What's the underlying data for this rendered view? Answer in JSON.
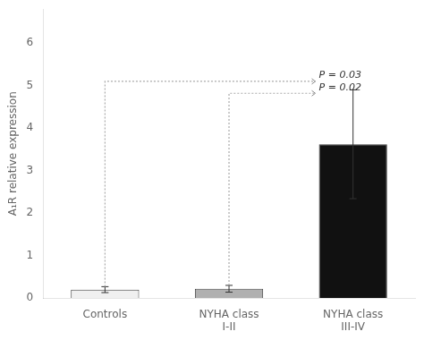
{
  "chart_data": {
    "type": "bar",
    "categories": [
      "Controls",
      "NYHA class\nI-II",
      "NYHA class\nIII-IV"
    ],
    "values": [
      0.2,
      0.22,
      3.62
    ],
    "errors": [
      0.07,
      0.08,
      1.28
    ],
    "colors": [
      "#f0f0f0",
      "#b0b0b0",
      "#111111"
    ],
    "ylabel": "A₁R relative expression",
    "ylim": [
      0,
      6.8
    ],
    "yticks": [
      0,
      1,
      2,
      3,
      4,
      5,
      6
    ],
    "grid": false,
    "annotations": [
      {
        "text": "P = 0.03",
        "y": 5.1,
        "from": "Controls",
        "to": "NYHA class\nIII-IV"
      },
      {
        "text": "P = 0.02",
        "y": 4.82,
        "from": "NYHA class\nI-II",
        "to": "NYHA class\nIII-IV"
      }
    ]
  }
}
